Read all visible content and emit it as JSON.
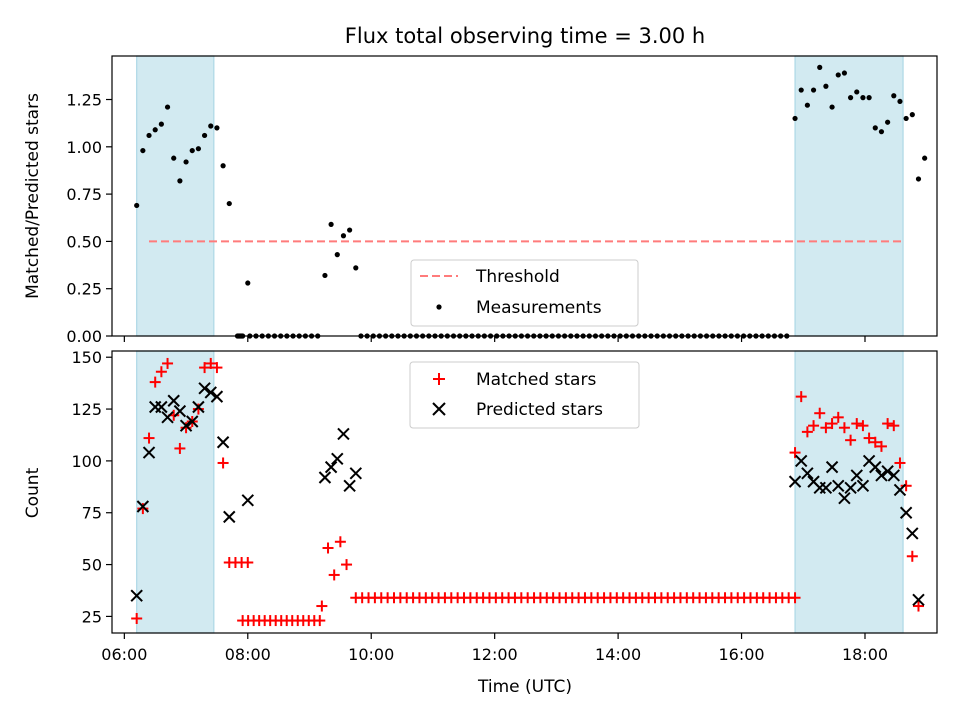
{
  "chart_data": [
    {
      "type": "scatter",
      "title": "Flux total observing time = 3.00 h",
      "xlabel": "",
      "ylabel": "Matched/Predicted stars",
      "xlim": [
        "05:48",
        "19:10"
      ],
      "ylim": [
        0,
        1.48
      ],
      "yticks": [
        "0.00",
        "0.25",
        "0.50",
        "0.75",
        "1.00",
        "1.25"
      ],
      "ytick_values": [
        0,
        0.25,
        0.5,
        0.75,
        1.0,
        1.25
      ],
      "shaded_intervals": [
        [
          "06:12",
          "07:27"
        ],
        [
          "16:52",
          "18:37"
        ]
      ],
      "threshold": 0.5,
      "legend_position": "lower center",
      "legend": {
        "threshold": "Threshold",
        "measurements": "Measurements"
      },
      "series": [
        {
          "name": "Measurements",
          "points": [
            [
              "06:12",
              0.69
            ],
            [
              "06:18",
              0.98
            ],
            [
              "06:24",
              1.06
            ],
            [
              "06:30",
              1.09
            ],
            [
              "06:36",
              1.12
            ],
            [
              "06:42",
              1.21
            ],
            [
              "06:48",
              0.94
            ],
            [
              "06:54",
              0.82
            ],
            [
              "07:00",
              0.92
            ],
            [
              "07:06",
              0.98
            ],
            [
              "07:12",
              0.99
            ],
            [
              "07:18",
              1.06
            ],
            [
              "07:24",
              1.11
            ],
            [
              "07:30",
              1.1
            ],
            [
              "07:36",
              0.9
            ],
            [
              "07:42",
              0.7
            ],
            [
              "08:00",
              0.28
            ],
            [
              "09:15",
              0.32
            ],
            [
              "09:21",
              0.59
            ],
            [
              "09:27",
              0.43
            ],
            [
              "09:33",
              0.53
            ],
            [
              "09:39",
              0.56
            ],
            [
              "09:45",
              0.36
            ],
            [
              "16:52",
              1.15
            ],
            [
              "16:58",
              1.3
            ],
            [
              "17:04",
              1.22
            ],
            [
              "17:10",
              1.3
            ],
            [
              "17:16",
              1.42
            ],
            [
              "17:22",
              1.32
            ],
            [
              "17:28",
              1.21
            ],
            [
              "17:34",
              1.38
            ],
            [
              "17:40",
              1.39
            ],
            [
              "17:46",
              1.26
            ],
            [
              "17:52",
              1.29
            ],
            [
              "17:58",
              1.26
            ],
            [
              "18:04",
              1.26
            ],
            [
              "18:10",
              1.1
            ],
            [
              "18:16",
              1.08
            ],
            [
              "18:22",
              1.13
            ],
            [
              "18:28",
              1.27
            ],
            [
              "18:34",
              1.24
            ],
            [
              "18:40",
              1.15
            ],
            [
              "18:46",
              1.17
            ],
            [
              "18:52",
              0.83
            ],
            [
              "18:58",
              0.94
            ]
          ],
          "zero_ranges": [
            [
              "07:50",
              "07:55",
              1
            ],
            [
              "08:02",
              "09:12",
              6
            ],
            [
              "09:50",
              "16:48",
              6
            ]
          ]
        }
      ]
    },
    {
      "type": "scatter",
      "title": "",
      "xlabel": "Time (UTC)",
      "ylabel": "Count",
      "xlim": [
        "05:48",
        "19:10"
      ],
      "ylim": [
        17,
        153
      ],
      "xticks": [
        "06:00",
        "08:00",
        "10:00",
        "12:00",
        "14:00",
        "16:00",
        "18:00"
      ],
      "yticks": [
        "25",
        "50",
        "75",
        "100",
        "125",
        "150"
      ],
      "ytick_values": [
        25,
        50,
        75,
        100,
        125,
        150
      ],
      "shaded_intervals": [
        [
          "06:12",
          "07:27"
        ],
        [
          "16:52",
          "18:37"
        ]
      ],
      "legend_position": "upper center",
      "legend": {
        "matched": "Matched stars",
        "predicted": "Predicted stars"
      },
      "series": [
        {
          "name": "Matched stars",
          "color": "#ff0000",
          "points": [
            [
              "06:12",
              24
            ],
            [
              "06:18",
              77
            ],
            [
              "06:24",
              111
            ],
            [
              "06:30",
              138
            ],
            [
              "06:36",
              143
            ],
            [
              "06:42",
              147
            ],
            [
              "06:48",
              122
            ],
            [
              "06:54",
              106
            ],
            [
              "07:00",
              116
            ],
            [
              "07:06",
              119
            ],
            [
              "07:12",
              125
            ],
            [
              "07:18",
              145
            ],
            [
              "07:24",
              147
            ],
            [
              "07:30",
              145
            ],
            [
              "07:36",
              99
            ],
            [
              "07:42",
              51
            ],
            [
              "07:48",
              51
            ],
            [
              "07:54",
              51
            ],
            [
              "08:00",
              51
            ],
            [
              "09:12",
              30
            ],
            [
              "09:18",
              58
            ],
            [
              "09:24",
              45
            ],
            [
              "09:30",
              61
            ],
            [
              "09:36",
              50
            ],
            [
              "16:52",
              104
            ],
            [
              "16:58",
              131
            ],
            [
              "17:04",
              114
            ],
            [
              "17:10",
              117
            ],
            [
              "17:16",
              123
            ],
            [
              "17:22",
              116
            ],
            [
              "17:28",
              118
            ],
            [
              "17:34",
              121
            ],
            [
              "17:40",
              116
            ],
            [
              "17:46",
              110
            ],
            [
              "17:52",
              118
            ],
            [
              "17:58",
              117
            ],
            [
              "18:04",
              111
            ],
            [
              "18:10",
              109
            ],
            [
              "18:16",
              107
            ],
            [
              "18:22",
              118
            ],
            [
              "18:28",
              117
            ],
            [
              "18:34",
              99
            ],
            [
              "18:40",
              88
            ],
            [
              "18:46",
              54
            ],
            [
              "18:52",
              30
            ]
          ],
          "constant_ranges": [
            [
              "07:55",
              "09:10",
              23,
              15
            ],
            [
              "09:45",
              "16:52",
              34,
              70
            ]
          ]
        },
        {
          "name": "Predicted stars",
          "color": "#000000",
          "points": [
            [
              "06:12",
              35
            ],
            [
              "06:18",
              78
            ],
            [
              "06:24",
              104
            ],
            [
              "06:30",
              126
            ],
            [
              "06:36",
              126
            ],
            [
              "06:42",
              121
            ],
            [
              "06:48",
              129
            ],
            [
              "06:54",
              124
            ],
            [
              "07:00",
              117
            ],
            [
              "07:06",
              119
            ],
            [
              "07:12",
              126
            ],
            [
              "07:18",
              135
            ],
            [
              "07:24",
              133
            ],
            [
              "07:30",
              131
            ],
            [
              "07:36",
              109
            ],
            [
              "07:42",
              73
            ],
            [
              "08:00",
              81
            ],
            [
              "09:15",
              92
            ],
            [
              "09:21",
              97
            ],
            [
              "09:27",
              101
            ],
            [
              "09:33",
              113
            ],
            [
              "09:39",
              88
            ],
            [
              "09:45",
              94
            ],
            [
              "16:52",
              90
            ],
            [
              "16:58",
              100
            ],
            [
              "17:04",
              94
            ],
            [
              "17:10",
              90
            ],
            [
              "17:16",
              87
            ],
            [
              "17:22",
              87
            ],
            [
              "17:28",
              97
            ],
            [
              "17:34",
              88
            ],
            [
              "17:40",
              82
            ],
            [
              "17:46",
              87
            ],
            [
              "17:52",
              93
            ],
            [
              "17:58",
              88
            ],
            [
              "18:04",
              100
            ],
            [
              "18:10",
              97
            ],
            [
              "18:16",
              93
            ],
            [
              "18:22",
              95
            ],
            [
              "18:28",
              93
            ],
            [
              "18:34",
              86
            ],
            [
              "18:40",
              75
            ],
            [
              "18:46",
              65
            ],
            [
              "18:52",
              33
            ]
          ]
        }
      ]
    }
  ],
  "colors": {
    "shade": "#add8e6",
    "threshold": "#ff7b7b",
    "matched": "#ff0000",
    "predicted": "#000000",
    "measurement": "#000000"
  }
}
